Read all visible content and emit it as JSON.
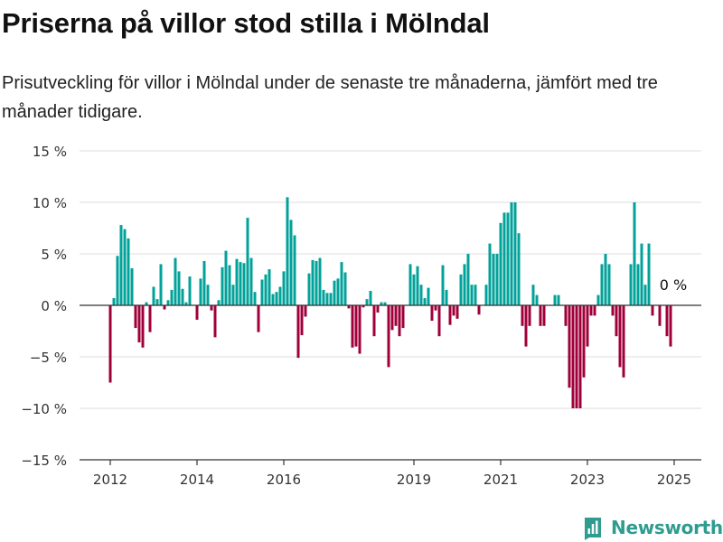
{
  "title": "Priserna på villor stod stilla i Mölndal",
  "subtitle": "Prisutveckling för villor i Mölndal under de senaste tre månaderna, jämfört med tre månader tidigare.",
  "brand": {
    "name": "Newsworthy",
    "icon": "newsworthy-logo-icon"
  },
  "colors": {
    "positive": "#00a29a",
    "negative": "#a0003a",
    "grid": "#dddddd",
    "axis": "#333333"
  },
  "chart_data": {
    "type": "bar",
    "ylim": [
      -15,
      15
    ],
    "y_ticks": [
      15,
      10,
      5,
      0,
      -5,
      -10,
      -15
    ],
    "y_tick_labels": [
      "15 %",
      "10 %",
      "5 %",
      "0 %",
      "−5 %",
      "−10 %",
      "−15 %"
    ],
    "x_tick_labels": [
      "2012",
      "2014",
      "2016",
      "2019",
      "2021",
      "2023",
      "2025"
    ],
    "x_tick_positions": [
      0,
      24,
      48,
      84,
      108,
      132,
      156
    ],
    "grid": true,
    "annotation": "0 %",
    "values": [
      -7.5,
      0.7,
      4.8,
      7.8,
      7.4,
      6.5,
      3.6,
      -2.2,
      -3.6,
      -4.1,
      0.3,
      -2.6,
      1.8,
      0.6,
      4.0,
      -0.4,
      0.5,
      1.5,
      4.6,
      3.3,
      1.6,
      0.3,
      2.8,
      null,
      -1.4,
      2.6,
      4.3,
      2.0,
      -0.5,
      -3.1,
      0.5,
      3.7,
      5.3,
      3.9,
      2.0,
      4.5,
      4.2,
      4.1,
      8.5,
      4.6,
      1.3,
      -2.6,
      2.5,
      3.0,
      3.5,
      1.1,
      1.3,
      1.8,
      3.3,
      10.5,
      8.3,
      6.8,
      -5.1,
      -2.9,
      -1.1,
      3.1,
      4.4,
      4.3,
      4.6,
      1.5,
      1.2,
      1.2,
      2.4,
      2.6,
      4.2,
      3.2,
      -0.3,
      -4.1,
      -4.0,
      -4.7,
      -0.2,
      0.6,
      1.4,
      -3.0,
      -0.7,
      0.3,
      0.3,
      -6.0,
      -2.4,
      -2.0,
      -3.0,
      -2.2,
      null,
      4.0,
      3.0,
      3.8,
      2.0,
      0.7,
      1.7,
      -1.5,
      -0.5,
      -3.0,
      3.9,
      1.5,
      -1.9,
      -1.0,
      -1.3,
      3.0,
      4.0,
      5.0,
      2.0,
      2.0,
      -0.9,
      null,
      2.0,
      6.0,
      5.0,
      5.0,
      8.0,
      9.0,
      9.0,
      10.0,
      10.0,
      7.0,
      -2.0,
      -4.0,
      -2.0,
      2.0,
      1.0,
      -2.0,
      -2.0,
      null,
      null,
      1.0,
      1.0,
      null,
      -2.0,
      -8.0,
      -10.0,
      -10.0,
      -10.0,
      -7.0,
      -4.0,
      -1.0,
      -1.0,
      1.0,
      4.0,
      5.0,
      4.0,
      -1.0,
      -3.0,
      -6.0,
      -7.0,
      null,
      4.0,
      10.0,
      4.0,
      6.0,
      2.0,
      6.0,
      -1.0,
      null,
      -2.0,
      null,
      -3.0,
      -4.0
    ]
  }
}
